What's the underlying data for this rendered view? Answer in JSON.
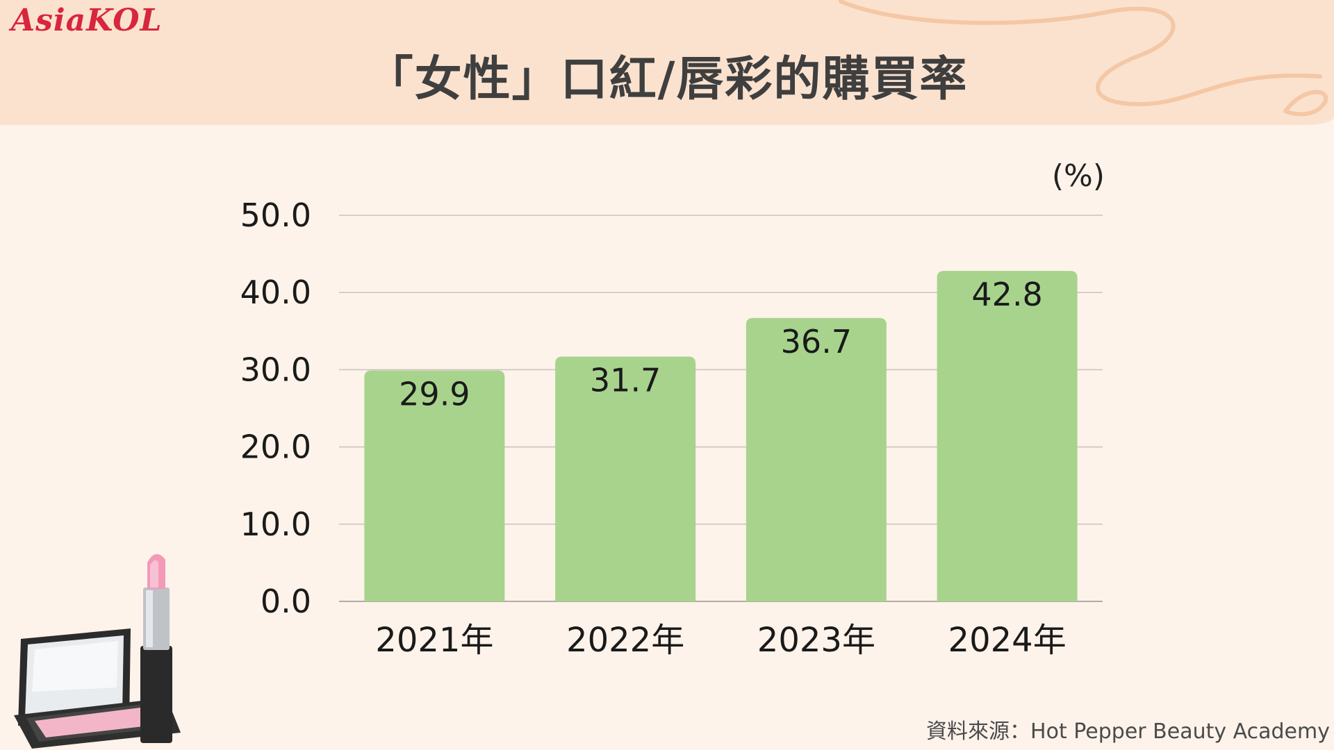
{
  "brand": {
    "logo_text": "AsiaKOL"
  },
  "header": {
    "title": "「女性」口紅/唇彩的購買率"
  },
  "source_note": "資料來源：Hot Pepper Beauty Academy",
  "colors": {
    "background": "#fdf3ea",
    "header_band": "#fbe2cf",
    "bar": "#a8d38d",
    "grid": "#c9c2bb",
    "text": "#1a1a1a",
    "logo": "#d7263d"
  },
  "icons": [
    "lipstick-compact-illustration",
    "decorative-swirl"
  ],
  "chart_data": {
    "type": "bar",
    "title": "",
    "unit_label": "(%)",
    "xlabel": "",
    "ylabel": "",
    "categories": [
      "2021年",
      "2022年",
      "2023年",
      "2024年"
    ],
    "values": [
      29.9,
      31.7,
      36.7,
      42.8
    ],
    "value_labels": [
      "29.9",
      "31.7",
      "36.7",
      "42.8"
    ],
    "ylim": [
      0,
      50
    ],
    "yticks": [
      "0.0",
      "10.0",
      "20.0",
      "30.0",
      "40.0",
      "50.0"
    ],
    "grid": true,
    "legend": "none"
  }
}
